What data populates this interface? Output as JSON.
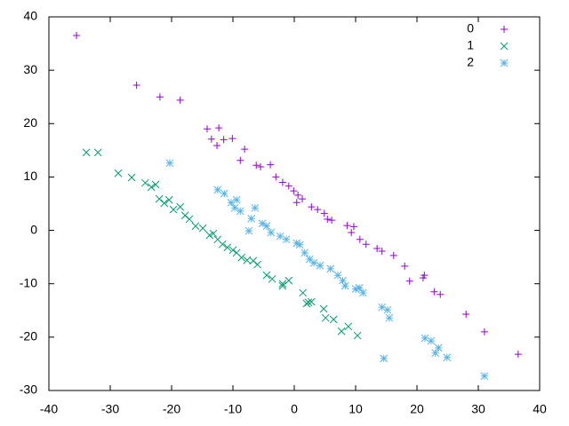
{
  "chart_data": {
    "type": "scatter",
    "xlim": [
      -40,
      40
    ],
    "ylim": [
      -30,
      40
    ],
    "xticks": [
      -40,
      -30,
      -20,
      -10,
      0,
      10,
      20,
      30,
      40
    ],
    "yticks": [
      -30,
      -20,
      -10,
      0,
      10,
      20,
      30,
      40
    ],
    "legend": "top-right",
    "series": [
      {
        "name": "0",
        "color": "#9400d3",
        "marker": "plus",
        "x": [
          -35.5,
          -25.7,
          -21.9,
          -18.6,
          -14.2,
          -12.3,
          -13.5,
          -11.5,
          -10.1,
          -12.6,
          -8.1,
          -8.8,
          -6.2,
          -5.5,
          -3.9,
          -3.0,
          -1.9,
          -0.9,
          -0.1,
          0.6,
          1.3,
          0.4,
          2.8,
          3.8,
          4.9,
          5.4,
          6.1,
          8.6,
          9.7,
          9.3,
          10.7,
          11.7,
          13.5,
          14.3,
          16.2,
          18.0,
          18.8,
          21.0,
          21.2,
          22.8,
          23.8,
          28.0,
          31.0,
          36.5
        ],
        "values": [
          36.5,
          27.2,
          25.0,
          24.4,
          19.0,
          19.2,
          17.1,
          17.0,
          17.2,
          15.9,
          15.2,
          13.1,
          12.2,
          11.9,
          12.3,
          10.0,
          9.0,
          8.3,
          7.4,
          6.6,
          5.9,
          5.2,
          4.4,
          3.9,
          3.2,
          2.1,
          1.9,
          0.9,
          0.7,
          -0.4,
          -1.7,
          -2.6,
          -3.4,
          -3.9,
          -4.7,
          -6.7,
          -9.5,
          -8.9,
          -8.4,
          -11.5,
          -12.0,
          -15.7,
          -19.0,
          -23.2
        ]
      },
      {
        "name": "1",
        "color": "#009e73",
        "marker": "cross",
        "x": [
          -33.9,
          -32.0,
          -28.7,
          -26.5,
          -24.3,
          -23.3,
          -22.6,
          -22.0,
          -21.2,
          -20.4,
          -19.7,
          -18.6,
          -17.8,
          -17.1,
          -16.1,
          -14.9,
          -13.8,
          -13.2,
          -12.5,
          -11.7,
          -10.9,
          -10.0,
          -9.4,
          -8.6,
          -7.7,
          -6.7,
          -6.0,
          -4.5,
          -3.6,
          -1.9,
          -0.9,
          -1.9,
          1.4,
          2.0,
          2.8,
          4.8,
          5.1,
          6.4,
          7.7,
          8.8,
          10.3,
          2.3
        ],
        "values": [
          14.6,
          14.6,
          10.7,
          9.9,
          8.9,
          8.1,
          8.6,
          5.9,
          5.1,
          5.7,
          3.9,
          4.4,
          2.8,
          2.1,
          0.8,
          0.4,
          -0.9,
          -0.6,
          -1.7,
          -2.6,
          -3.2,
          -3.7,
          -4.2,
          -5.1,
          -5.6,
          -5.7,
          -6.4,
          -8.4,
          -9.1,
          -10.0,
          -9.4,
          -10.4,
          -11.7,
          -13.7,
          -13.4,
          -14.7,
          -16.4,
          -16.7,
          -18.9,
          -18.0,
          -19.7,
          -13.5
        ]
      },
      {
        "name": "2",
        "color": "#56b4e9",
        "marker": "star",
        "x": [
          -20.3,
          -12.5,
          -11.4,
          -10.3,
          -9.4,
          -9.7,
          -8.8,
          -6.4,
          -7.0,
          -5.2,
          -4.5,
          -3.8,
          -2.3,
          -1.3,
          0.4,
          0.9,
          1.7,
          2.5,
          3.2,
          4.2,
          5.9,
          7.1,
          7.9,
          8.3,
          10.0,
          11.2,
          14.3,
          15.2,
          15.5,
          14.6,
          21.3,
          22.3,
          23.5,
          23.0,
          24.9,
          31.0,
          10.6,
          -7.4
        ],
        "values": [
          12.6,
          7.6,
          6.9,
          5.2,
          5.7,
          4.2,
          3.6,
          4.2,
          2.2,
          1.3,
          0.8,
          -0.4,
          -1.1,
          -1.7,
          -2.4,
          -2.7,
          -4.2,
          -5.4,
          -6.1,
          -6.6,
          -7.2,
          -8.4,
          -9.4,
          -10.4,
          -11.0,
          -11.7,
          -14.4,
          -14.9,
          -16.4,
          -24.0,
          -20.2,
          -20.7,
          -22.0,
          -23.0,
          -23.8,
          -27.3,
          -10.8,
          -0.1
        ]
      }
    ]
  }
}
